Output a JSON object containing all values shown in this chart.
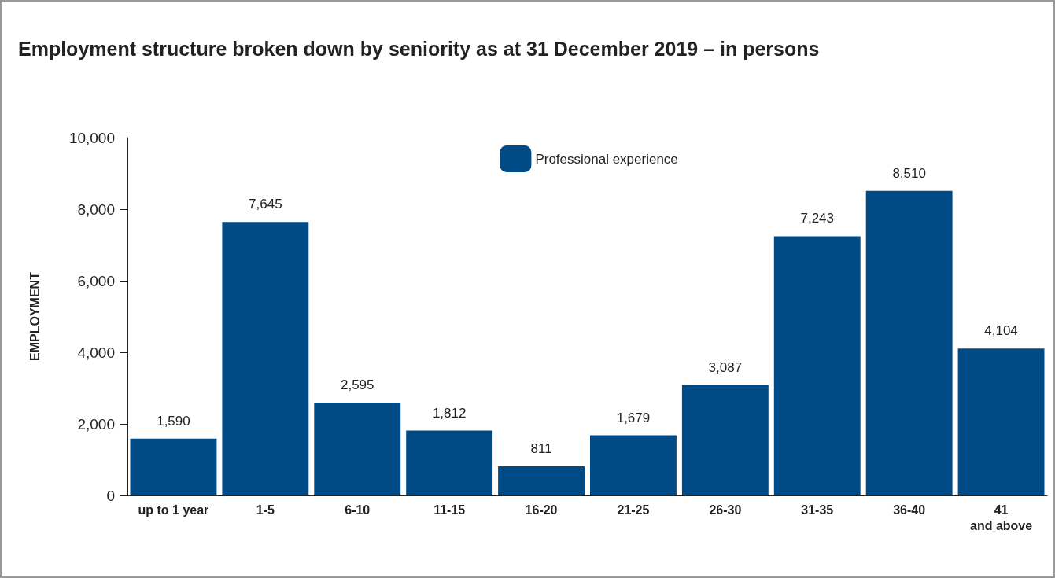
{
  "chart_data": {
    "type": "bar",
    "title": "Employment structure broken down by seniority as at 31 December 2019 – in persons",
    "ylabel": "EMPLOYMENT",
    "categories": [
      "up to 1 year",
      "1-5",
      "6-10",
      "11-15",
      "16-20",
      "21-25",
      "26-30",
      "31-35",
      "36-40",
      "41\nand above"
    ],
    "series": [
      {
        "name": "Professional experience",
        "color": "#004a85",
        "values": [
          1590,
          7645,
          2595,
          1812,
          811,
          1679,
          3087,
          7243,
          8510,
          4104
        ],
        "value_labels": [
          "1,590",
          "7,645",
          "2,595",
          "1,812",
          "811",
          "1,679",
          "3,087",
          "7,243",
          "8,510",
          "4,104"
        ]
      }
    ],
    "ylim": [
      0,
      10000
    ],
    "yticks": [
      {
        "value": 0,
        "label": "0"
      },
      {
        "value": 2000,
        "label": "2,000"
      },
      {
        "value": 4000,
        "label": "4,000"
      },
      {
        "value": 6000,
        "label": "6,000"
      },
      {
        "value": 8000,
        "label": "8,000"
      },
      {
        "value": 10000,
        "label": "10,000"
      }
    ],
    "legend": "top",
    "grid": false
  }
}
